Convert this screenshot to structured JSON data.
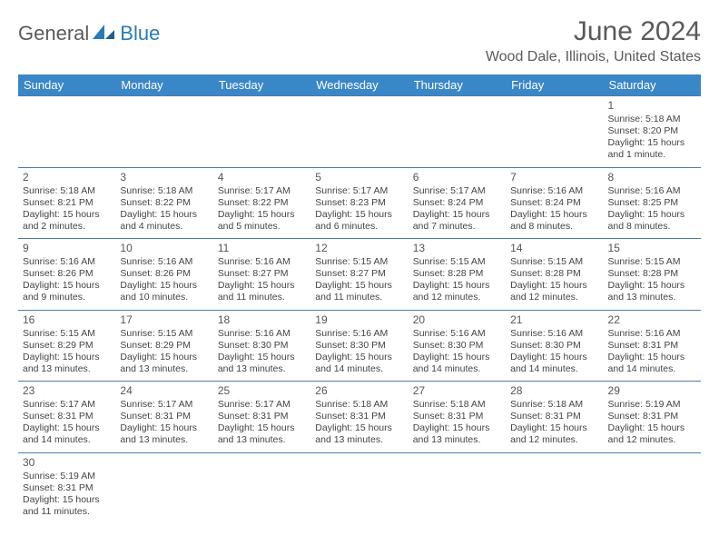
{
  "branding": {
    "logo_part1": "General",
    "logo_part2": "Blue",
    "logo_color1": "#5a5a5a",
    "logo_color2": "#2a7ab8"
  },
  "title": "June 2024",
  "location": "Wood Dale, Illinois, United States",
  "header_bg": "#3a87c8",
  "header_fg": "#ffffff",
  "border_color": "#4a7cb0",
  "weekdays": [
    "Sunday",
    "Monday",
    "Tuesday",
    "Wednesday",
    "Thursday",
    "Friday",
    "Saturday"
  ],
  "weeks": [
    [
      null,
      null,
      null,
      null,
      null,
      null,
      {
        "n": "1",
        "sr": "5:18 AM",
        "ss": "8:20 PM",
        "dl": "15 hours and 1 minute."
      }
    ],
    [
      {
        "n": "2",
        "sr": "5:18 AM",
        "ss": "8:21 PM",
        "dl": "15 hours and 2 minutes."
      },
      {
        "n": "3",
        "sr": "5:18 AM",
        "ss": "8:22 PM",
        "dl": "15 hours and 4 minutes."
      },
      {
        "n": "4",
        "sr": "5:17 AM",
        "ss": "8:22 PM",
        "dl": "15 hours and 5 minutes."
      },
      {
        "n": "5",
        "sr": "5:17 AM",
        "ss": "8:23 PM",
        "dl": "15 hours and 6 minutes."
      },
      {
        "n": "6",
        "sr": "5:17 AM",
        "ss": "8:24 PM",
        "dl": "15 hours and 7 minutes."
      },
      {
        "n": "7",
        "sr": "5:16 AM",
        "ss": "8:24 PM",
        "dl": "15 hours and 8 minutes."
      },
      {
        "n": "8",
        "sr": "5:16 AM",
        "ss": "8:25 PM",
        "dl": "15 hours and 8 minutes."
      }
    ],
    [
      {
        "n": "9",
        "sr": "5:16 AM",
        "ss": "8:26 PM",
        "dl": "15 hours and 9 minutes."
      },
      {
        "n": "10",
        "sr": "5:16 AM",
        "ss": "8:26 PM",
        "dl": "15 hours and 10 minutes."
      },
      {
        "n": "11",
        "sr": "5:16 AM",
        "ss": "8:27 PM",
        "dl": "15 hours and 11 minutes."
      },
      {
        "n": "12",
        "sr": "5:15 AM",
        "ss": "8:27 PM",
        "dl": "15 hours and 11 minutes."
      },
      {
        "n": "13",
        "sr": "5:15 AM",
        "ss": "8:28 PM",
        "dl": "15 hours and 12 minutes."
      },
      {
        "n": "14",
        "sr": "5:15 AM",
        "ss": "8:28 PM",
        "dl": "15 hours and 12 minutes."
      },
      {
        "n": "15",
        "sr": "5:15 AM",
        "ss": "8:28 PM",
        "dl": "15 hours and 13 minutes."
      }
    ],
    [
      {
        "n": "16",
        "sr": "5:15 AM",
        "ss": "8:29 PM",
        "dl": "15 hours and 13 minutes."
      },
      {
        "n": "17",
        "sr": "5:15 AM",
        "ss": "8:29 PM",
        "dl": "15 hours and 13 minutes."
      },
      {
        "n": "18",
        "sr": "5:16 AM",
        "ss": "8:30 PM",
        "dl": "15 hours and 13 minutes."
      },
      {
        "n": "19",
        "sr": "5:16 AM",
        "ss": "8:30 PM",
        "dl": "15 hours and 14 minutes."
      },
      {
        "n": "20",
        "sr": "5:16 AM",
        "ss": "8:30 PM",
        "dl": "15 hours and 14 minutes."
      },
      {
        "n": "21",
        "sr": "5:16 AM",
        "ss": "8:30 PM",
        "dl": "15 hours and 14 minutes."
      },
      {
        "n": "22",
        "sr": "5:16 AM",
        "ss": "8:31 PM",
        "dl": "15 hours and 14 minutes."
      }
    ],
    [
      {
        "n": "23",
        "sr": "5:17 AM",
        "ss": "8:31 PM",
        "dl": "15 hours and 14 minutes."
      },
      {
        "n": "24",
        "sr": "5:17 AM",
        "ss": "8:31 PM",
        "dl": "15 hours and 13 minutes."
      },
      {
        "n": "25",
        "sr": "5:17 AM",
        "ss": "8:31 PM",
        "dl": "15 hours and 13 minutes."
      },
      {
        "n": "26",
        "sr": "5:18 AM",
        "ss": "8:31 PM",
        "dl": "15 hours and 13 minutes."
      },
      {
        "n": "27",
        "sr": "5:18 AM",
        "ss": "8:31 PM",
        "dl": "15 hours and 13 minutes."
      },
      {
        "n": "28",
        "sr": "5:18 AM",
        "ss": "8:31 PM",
        "dl": "15 hours and 12 minutes."
      },
      {
        "n": "29",
        "sr": "5:19 AM",
        "ss": "8:31 PM",
        "dl": "15 hours and 12 minutes."
      }
    ],
    [
      {
        "n": "30",
        "sr": "5:19 AM",
        "ss": "8:31 PM",
        "dl": "15 hours and 11 minutes."
      },
      null,
      null,
      null,
      null,
      null,
      null
    ]
  ],
  "labels": {
    "sunrise": "Sunrise:",
    "sunset": "Sunset:",
    "daylight": "Daylight:"
  }
}
